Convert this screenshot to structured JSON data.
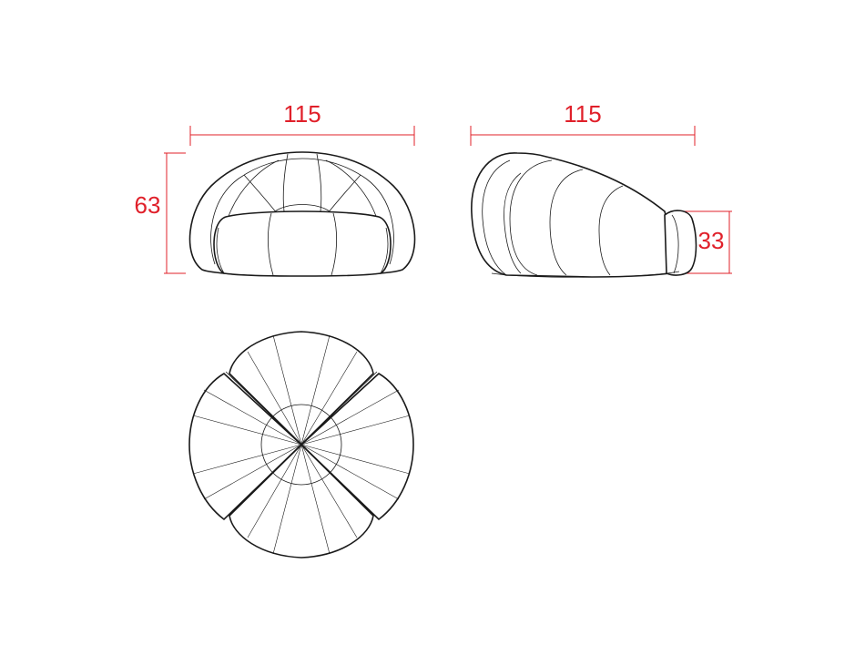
{
  "dimensions": {
    "front_width": "115",
    "front_height": "63",
    "side_width": "115",
    "side_cushion_height": "33"
  },
  "colors": {
    "dimension": "#e0202a",
    "outline": "#1a1a1a",
    "background": "#ffffff"
  }
}
